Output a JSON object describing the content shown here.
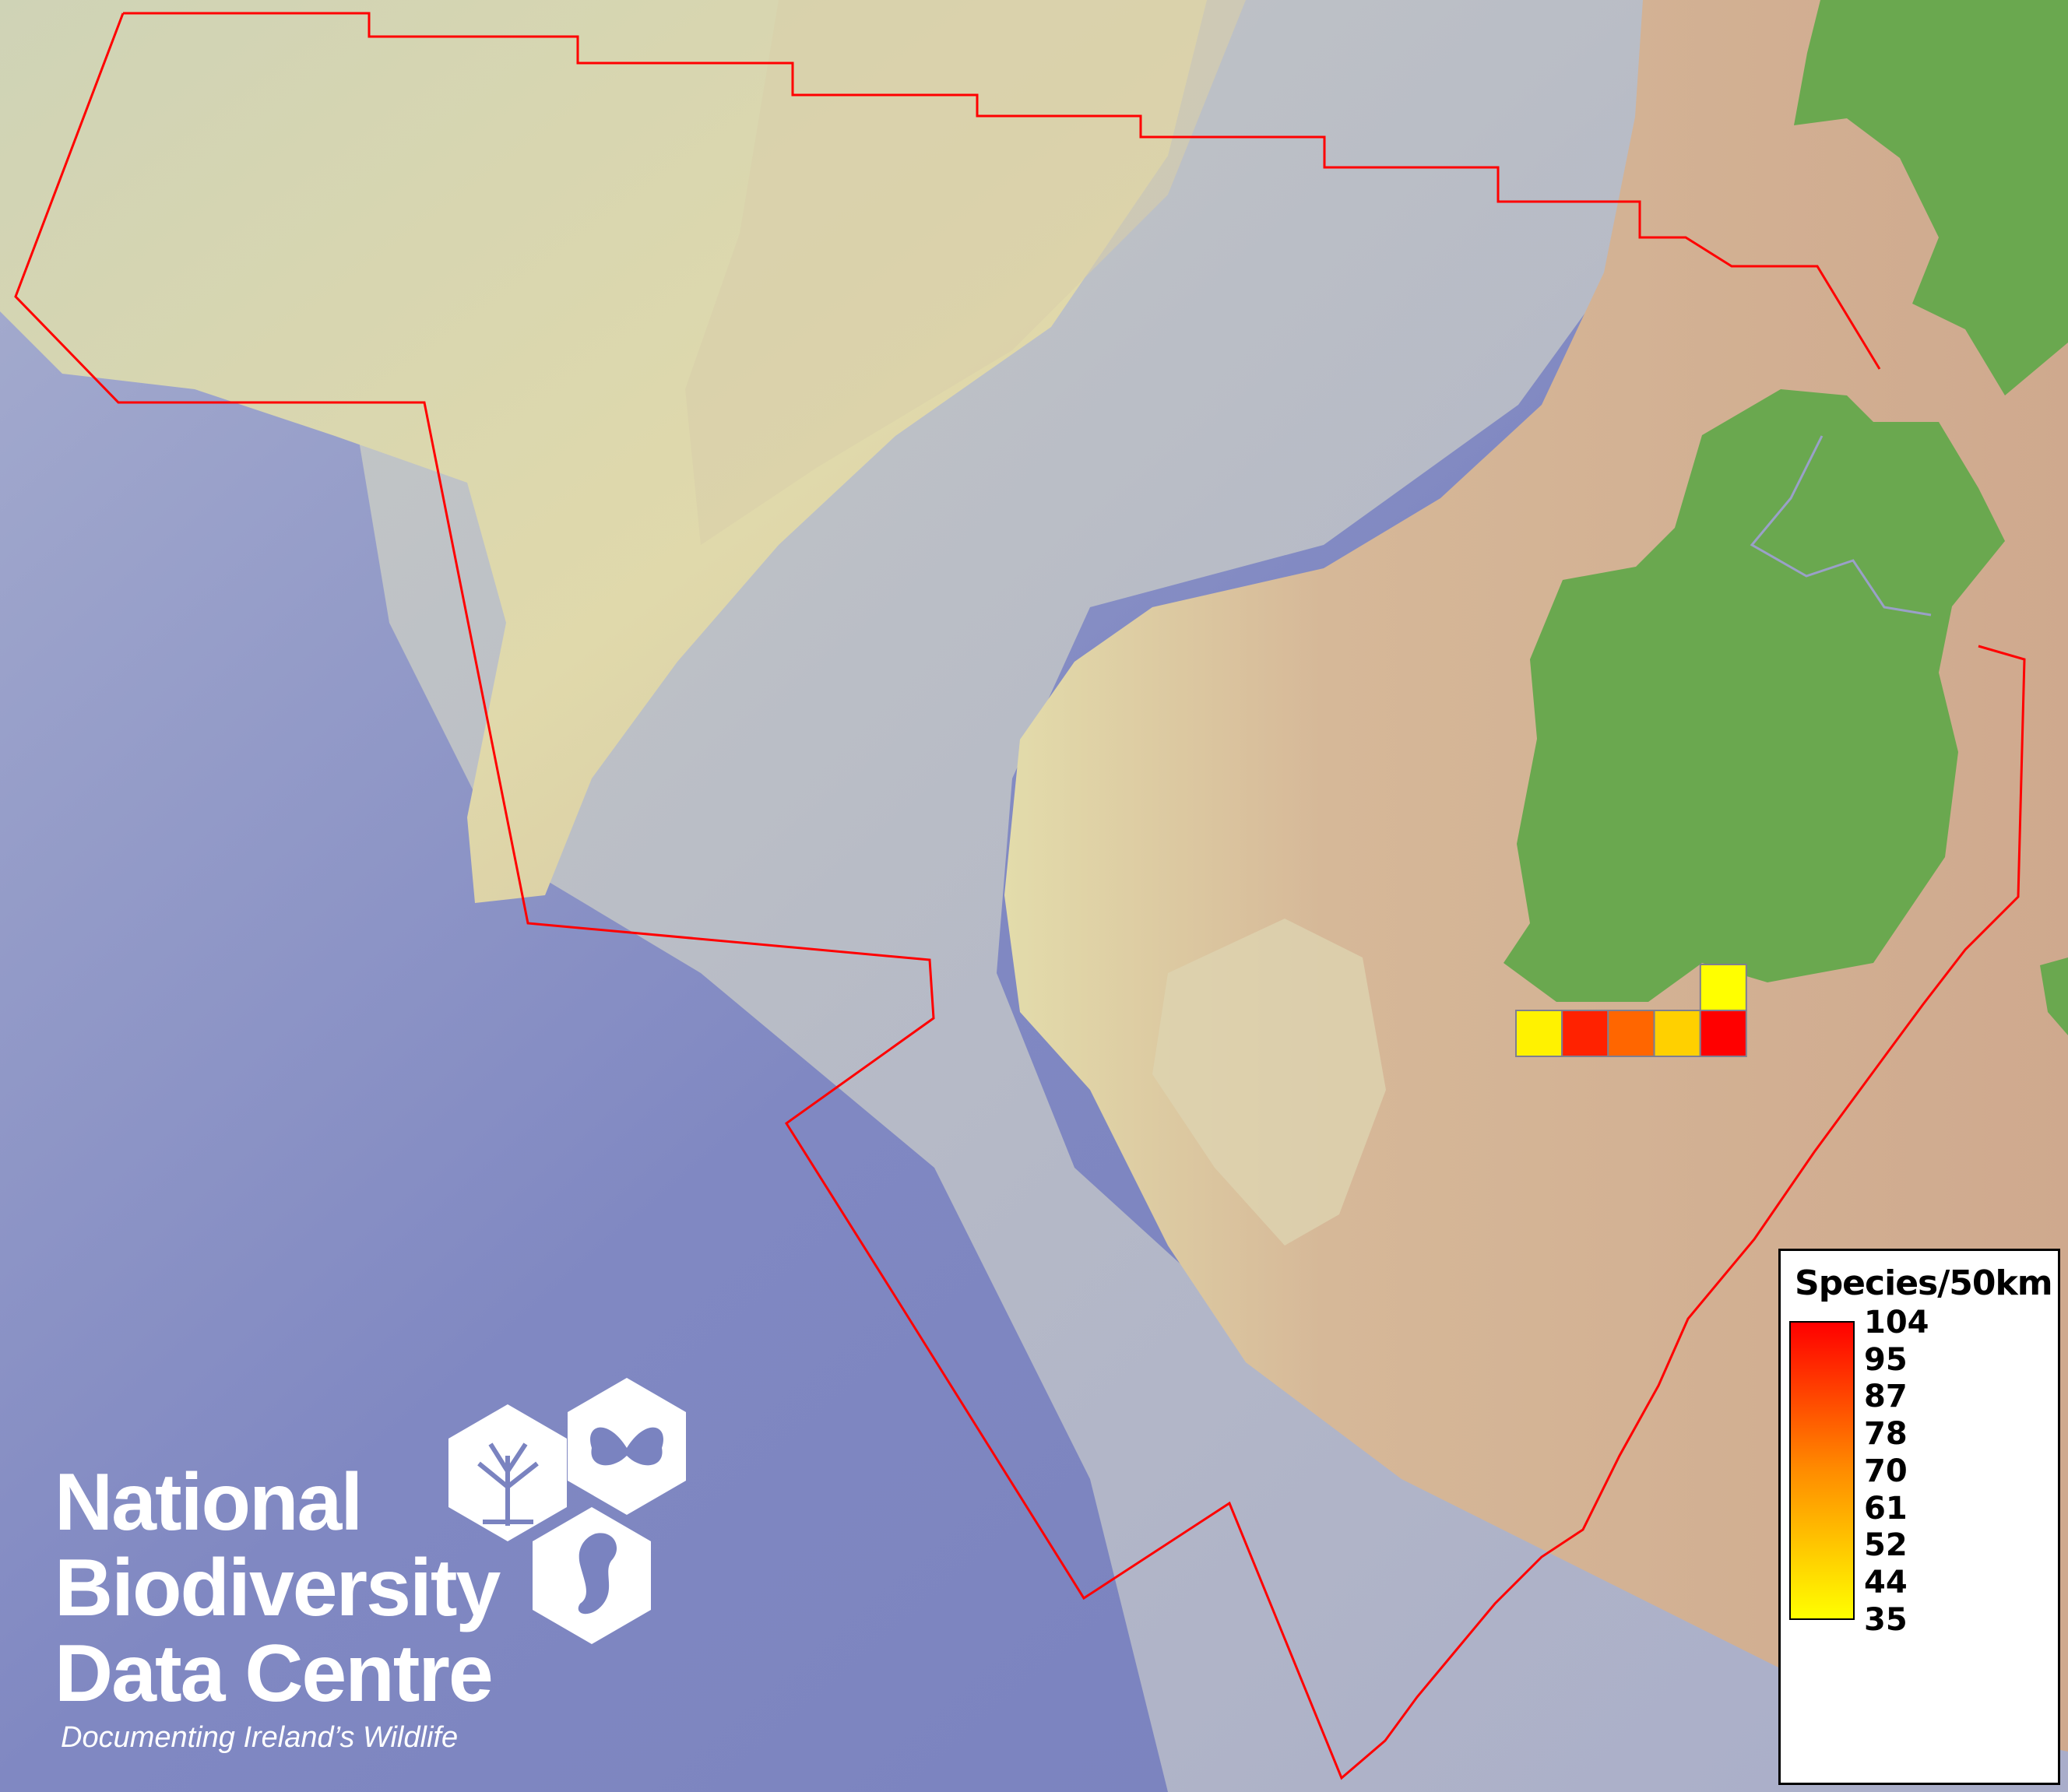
{
  "map": {
    "boundary_color": "#ff0000",
    "land_color": "#6aa84f",
    "grid_cells": [
      {
        "species": 35,
        "color": "#ffff00",
        "col": 4,
        "row": 0
      },
      {
        "species": 37,
        "color": "#fff200",
        "col": 0,
        "row": 1
      },
      {
        "species": 100,
        "color": "#ff2200",
        "col": 1,
        "row": 1
      },
      {
        "species": 82,
        "color": "#ff6600",
        "col": 2,
        "row": 1
      },
      {
        "species": 50,
        "color": "#ffd000",
        "col": 3,
        "row": 1
      },
      {
        "species": 104,
        "color": "#ff0000",
        "col": 4,
        "row": 1
      }
    ]
  },
  "legend": {
    "title": "Species/50km",
    "labels": [
      "104",
      "95",
      "87",
      "78",
      "70",
      "61",
      "52",
      "44",
      "35"
    ],
    "color_max": "#ff0000",
    "color_mid": "#ff8c00",
    "color_min": "#ffff00"
  },
  "logo": {
    "line1": "National",
    "line2": "Biodiversity",
    "line3": "Data Centre",
    "tagline": "Documenting Ireland’s Wildlife"
  }
}
